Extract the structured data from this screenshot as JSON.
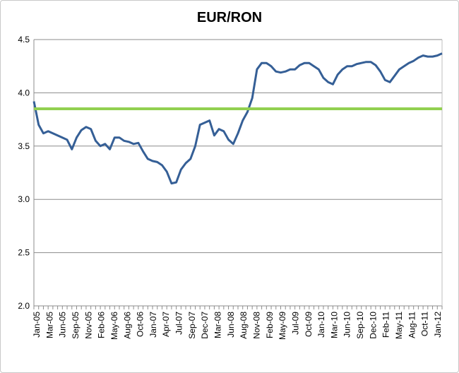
{
  "chart_data": {
    "type": "line",
    "title": "EUR/RON",
    "xlabel": "",
    "ylabel": "",
    "ylim": [
      2.0,
      4.5
    ],
    "y_ticks": [
      "2.0",
      "2.5",
      "3.0",
      "3.5",
      "4.0",
      "4.5"
    ],
    "x_tick_labels": [
      "Jan-05",
      "Mar-05",
      "Jun-05",
      "Sep-05",
      "Nov-05",
      "Feb-06",
      "May-06",
      "Aug-06",
      "Oct-06",
      "Jan-07",
      "Apr-07",
      "Jul-07",
      "Sep-07",
      "Dec-07",
      "Mar-08",
      "Jun-08",
      "Aug-08",
      "Nov-08",
      "Feb-09",
      "May-09",
      "Jul-09",
      "Oct-09",
      "Jan-10",
      "Mar-10",
      "Jun-10",
      "Sep-10",
      "Dec-10",
      "Feb-11",
      "May-11",
      "Aug-11",
      "Oct-11",
      "Jan-12"
    ],
    "grid": true,
    "series": [
      {
        "color": "#355f96",
        "x": [
          "2005-01",
          "2005-02",
          "2005-03",
          "2005-04",
          "2005-05",
          "2005-06",
          "2005-07",
          "2005-08",
          "2005-09",
          "2005-10",
          "2005-11",
          "2005-12",
          "2006-01",
          "2006-02",
          "2006-03",
          "2006-04",
          "2006-05",
          "2006-06",
          "2006-07",
          "2006-08",
          "2006-09",
          "2006-10",
          "2006-11",
          "2006-12",
          "2007-01",
          "2007-02",
          "2007-03",
          "2007-04",
          "2007-05",
          "2007-06",
          "2007-07",
          "2007-08",
          "2007-09",
          "2007-10",
          "2007-11",
          "2007-12",
          "2008-01",
          "2008-02",
          "2008-03",
          "2008-04",
          "2008-05",
          "2008-06",
          "2008-07",
          "2008-08",
          "2008-09",
          "2008-10",
          "2008-11",
          "2008-12",
          "2009-01",
          "2009-02",
          "2009-03",
          "2009-04",
          "2009-05",
          "2009-06",
          "2009-07",
          "2009-08",
          "2009-09",
          "2009-10",
          "2009-11",
          "2009-12",
          "2010-01",
          "2010-02",
          "2010-03",
          "2010-04",
          "2010-05",
          "2010-06",
          "2010-07",
          "2010-08",
          "2010-09",
          "2010-10",
          "2010-11",
          "2010-12",
          "2011-01",
          "2011-02",
          "2011-03",
          "2011-04",
          "2011-05",
          "2011-06",
          "2011-07",
          "2011-08",
          "2011-09",
          "2011-10",
          "2011-11",
          "2011-12",
          "2012-01",
          "2012-02",
          "2012-03"
        ],
        "values": [
          3.92,
          3.7,
          3.62,
          3.64,
          3.62,
          3.6,
          3.58,
          3.56,
          3.47,
          3.58,
          3.65,
          3.68,
          3.66,
          3.55,
          3.5,
          3.52,
          3.47,
          3.58,
          3.58,
          3.55,
          3.54,
          3.52,
          3.53,
          3.45,
          3.38,
          3.36,
          3.35,
          3.32,
          3.26,
          3.15,
          3.16,
          3.28,
          3.34,
          3.38,
          3.5,
          3.7,
          3.72,
          3.74,
          3.6,
          3.66,
          3.64,
          3.56,
          3.52,
          3.62,
          3.74,
          3.82,
          3.95,
          4.22,
          4.28,
          4.28,
          4.25,
          4.2,
          4.19,
          4.2,
          4.22,
          4.22,
          4.26,
          4.28,
          4.28,
          4.25,
          4.22,
          4.14,
          4.1,
          4.08,
          4.17,
          4.22,
          4.25,
          4.25,
          4.27,
          4.28,
          4.29,
          4.29,
          4.26,
          4.2,
          4.12,
          4.1,
          4.16,
          4.22,
          4.25,
          4.28,
          4.3,
          4.33,
          4.35,
          4.34,
          4.34,
          4.35,
          4.37
        ]
      },
      {
        "color": "#92d050",
        "x": [
          "2005-01",
          "2012-03"
        ],
        "values": [
          3.85,
          3.85
        ]
      }
    ]
  }
}
